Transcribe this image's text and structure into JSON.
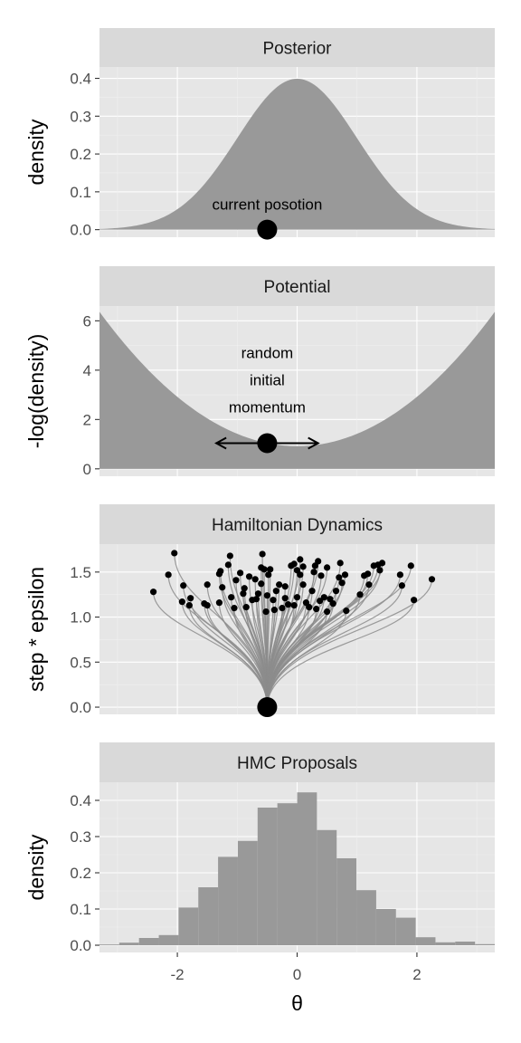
{
  "chart_data": [
    {
      "type": "area",
      "panel": "Posterior",
      "ylabel": "density",
      "xlim": [
        -3.3,
        3.3
      ],
      "ylim": [
        -0.02,
        0.43
      ],
      "yticks": [
        "0.0",
        "0.1",
        "0.2",
        "0.3",
        "0.4"
      ],
      "curve": "normal density, mean 0, sd 1 (peak 0.399)",
      "current_position": {
        "x": -0.5,
        "y": 0
      },
      "annotations": [
        {
          "x": -0.5,
          "y": 0.067,
          "text": "current posotion"
        }
      ],
      "fill_color": "#999999",
      "panel_background": "#e6e6e6",
      "grid": true
    },
    {
      "type": "area",
      "panel": "Potential",
      "ylabel": "-log(density)",
      "xlim": [
        -3.3,
        3.3
      ],
      "ylim": [
        -0.3,
        6.6
      ],
      "yticks": [
        "0",
        "2",
        "4",
        "6"
      ],
      "curve": "0.919 + x^2 / 2",
      "current_position": {
        "x": -0.5,
        "y": 1.04
      },
      "momentum_arrow": {
        "from": -1.35,
        "to": 0.35,
        "y": 1.04
      },
      "annotations": [
        {
          "x": -0.5,
          "y": 3.6,
          "lines": [
            "random",
            "initial",
            "momentum"
          ]
        }
      ],
      "fill_color": "#999999",
      "grid": true
    },
    {
      "type": "scatter",
      "panel": "Hamiltonian Dynamics",
      "ylabel": "step * epsilon",
      "xlim": [
        -3.3,
        3.3
      ],
      "ylim": [
        -0.08,
        1.81
      ],
      "yticks": [
        "0.0",
        "0.5",
        "1.0",
        "1.5"
      ],
      "origin": {
        "x": -0.5,
        "y": 0
      },
      "endpoints": [
        {
          "x": -2.4,
          "y": 1.28
        },
        {
          "x": -2.15,
          "y": 1.47
        },
        {
          "x": -2.05,
          "y": 1.71
        },
        {
          "x": -1.92,
          "y": 1.17
        },
        {
          "x": -1.9,
          "y": 1.35
        },
        {
          "x": -1.8,
          "y": 1.13
        },
        {
          "x": -1.78,
          "y": 1.21
        },
        {
          "x": -1.55,
          "y": 1.15
        },
        {
          "x": -1.5,
          "y": 1.13
        },
        {
          "x": -1.5,
          "y": 1.36
        },
        {
          "x": -1.3,
          "y": 1.16
        },
        {
          "x": -1.3,
          "y": 1.48
        },
        {
          "x": -1.28,
          "y": 1.51
        },
        {
          "x": -1.25,
          "y": 1.33
        },
        {
          "x": -1.15,
          "y": 1.58
        },
        {
          "x": -1.12,
          "y": 1.68
        },
        {
          "x": -1.1,
          "y": 1.22
        },
        {
          "x": -1.05,
          "y": 1.1
        },
        {
          "x": -1.02,
          "y": 1.41
        },
        {
          "x": -0.95,
          "y": 1.49
        },
        {
          "x": -0.9,
          "y": 1.26
        },
        {
          "x": -0.88,
          "y": 1.32
        },
        {
          "x": -0.85,
          "y": 1.11
        },
        {
          "x": -0.8,
          "y": 1.45
        },
        {
          "x": -0.75,
          "y": 1.19
        },
        {
          "x": -0.7,
          "y": 1.42
        },
        {
          "x": -0.68,
          "y": 1.2
        },
        {
          "x": -0.65,
          "y": 1.26
        },
        {
          "x": -0.6,
          "y": 1.37
        },
        {
          "x": -0.6,
          "y": 1.55
        },
        {
          "x": -0.58,
          "y": 1.7
        },
        {
          "x": -0.55,
          "y": 1.53
        },
        {
          "x": -0.52,
          "y": 1.06
        },
        {
          "x": -0.5,
          "y": 1.24
        },
        {
          "x": -0.48,
          "y": 1.47
        },
        {
          "x": -0.45,
          "y": 1.53
        },
        {
          "x": -0.4,
          "y": 1.19
        },
        {
          "x": -0.38,
          "y": 1.08
        },
        {
          "x": -0.35,
          "y": 1.29
        },
        {
          "x": -0.3,
          "y": 1.36
        },
        {
          "x": -0.25,
          "y": 1.1
        },
        {
          "x": -0.2,
          "y": 1.21
        },
        {
          "x": -0.2,
          "y": 1.34
        },
        {
          "x": -0.15,
          "y": 1.14
        },
        {
          "x": -0.1,
          "y": 1.57
        },
        {
          "x": -0.05,
          "y": 1.59
        },
        {
          "x": -0.05,
          "y": 1.13
        },
        {
          "x": 0.0,
          "y": 1.22
        },
        {
          "x": 0.0,
          "y": 1.52
        },
        {
          "x": 0.05,
          "y": 1.64
        },
        {
          "x": 0.05,
          "y": 1.47
        },
        {
          "x": 0.1,
          "y": 1.36
        },
        {
          "x": 0.1,
          "y": 1.56
        },
        {
          "x": 0.15,
          "y": 1.16
        },
        {
          "x": 0.2,
          "y": 1.11
        },
        {
          "x": 0.25,
          "y": 1.29
        },
        {
          "x": 0.28,
          "y": 1.5
        },
        {
          "x": 0.3,
          "y": 1.57
        },
        {
          "x": 0.32,
          "y": 1.09
        },
        {
          "x": 0.35,
          "y": 1.62
        },
        {
          "x": 0.38,
          "y": 1.18
        },
        {
          "x": 0.4,
          "y": 1.46
        },
        {
          "x": 0.45,
          "y": 1.22
        },
        {
          "x": 0.5,
          "y": 1.06
        },
        {
          "x": 0.5,
          "y": 1.55
        },
        {
          "x": 0.55,
          "y": 1.2
        },
        {
          "x": 0.6,
          "y": 1.15
        },
        {
          "x": 0.65,
          "y": 1.29
        },
        {
          "x": 0.7,
          "y": 1.44
        },
        {
          "x": 0.72,
          "y": 1.6
        },
        {
          "x": 0.75,
          "y": 1.38
        },
        {
          "x": 0.8,
          "y": 1.47
        },
        {
          "x": 0.82,
          "y": 1.07
        },
        {
          "x": 1.05,
          "y": 1.25
        },
        {
          "x": 1.12,
          "y": 1.46
        },
        {
          "x": 1.18,
          "y": 1.48
        },
        {
          "x": 1.2,
          "y": 1.36
        },
        {
          "x": 1.28,
          "y": 1.57
        },
        {
          "x": 1.35,
          "y": 1.58
        },
        {
          "x": 1.38,
          "y": 1.52
        },
        {
          "x": 1.42,
          "y": 1.6
        },
        {
          "x": 1.72,
          "y": 1.47
        },
        {
          "x": 1.75,
          "y": 1.35
        },
        {
          "x": 1.9,
          "y": 1.57
        },
        {
          "x": 1.95,
          "y": 1.19
        },
        {
          "x": 2.25,
          "y": 1.42
        }
      ],
      "line_color": "#8c8c8c",
      "grid": true
    },
    {
      "type": "bar",
      "panel": "HMC Proposals",
      "ylabel": "density",
      "xlabel": "θ",
      "xlim": [
        -3.3,
        3.3
      ],
      "ylim": [
        -0.02,
        0.45
      ],
      "yticks": [
        "0.0",
        "0.1",
        "0.2",
        "0.3",
        "0.4"
      ],
      "xticks": [
        {
          "value": -2,
          "label": "-2"
        },
        {
          "value": 0,
          "label": "0"
        },
        {
          "value": 2,
          "label": "2"
        }
      ],
      "bin_width": 0.33,
      "bins": [
        {
          "x0": -3.3,
          "height": 0.002
        },
        {
          "x0": -2.97,
          "height": 0.007
        },
        {
          "x0": -2.64,
          "height": 0.02
        },
        {
          "x0": -2.31,
          "height": 0.028
        },
        {
          "x0": -1.98,
          "height": 0.104
        },
        {
          "x0": -1.65,
          "height": 0.16
        },
        {
          "x0": -1.32,
          "height": 0.244
        },
        {
          "x0": -0.99,
          "height": 0.288
        },
        {
          "x0": -0.66,
          "height": 0.38
        },
        {
          "x0": -0.33,
          "height": 0.392
        },
        {
          "x0": 0.0,
          "height": 0.422
        },
        {
          "x0": 0.33,
          "height": 0.318
        },
        {
          "x0": 0.66,
          "height": 0.24
        },
        {
          "x0": 0.99,
          "height": 0.152
        },
        {
          "x0": 1.32,
          "height": 0.1
        },
        {
          "x0": 1.65,
          "height": 0.076
        },
        {
          "x0": 1.98,
          "height": 0.022
        },
        {
          "x0": 2.31,
          "height": 0.008
        },
        {
          "x0": 2.64,
          "height": 0.01
        },
        {
          "x0": 2.97,
          "height": 0.003
        }
      ],
      "fill_color": "#999999",
      "grid": true
    }
  ]
}
